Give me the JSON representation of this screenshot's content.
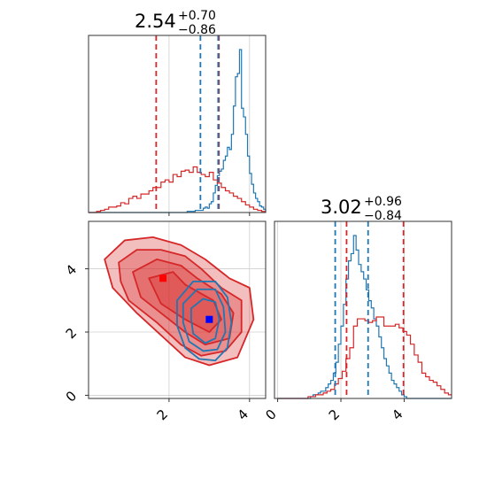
{
  "chart_data": [
    {
      "id": "panel-top-left",
      "type": "histogram",
      "title": {
        "median": "2.54",
        "plus": "+0.70",
        "minus": "−0.86"
      },
      "xlim": [
        0,
        4.4
      ],
      "xticks": [
        2,
        4
      ],
      "grid": true,
      "series": [
        {
          "color": "#1f77b4",
          "bin_start": 0.0,
          "bin_width": 0.05,
          "counts": [
            0,
            0,
            0,
            0,
            0,
            0,
            0,
            0,
            0,
            0,
            0,
            0,
            0,
            0,
            0,
            0,
            0,
            0,
            0,
            0,
            0,
            0,
            0,
            0,
            0,
            0,
            0,
            0,
            0,
            0,
            0,
            0,
            0,
            0,
            0,
            0,
            0,
            0,
            0,
            0,
            0,
            0,
            0,
            0,
            0,
            0,
            0,
            0,
            0,
            1,
            1,
            1,
            1,
            2,
            2,
            2,
            2,
            4,
            5,
            4,
            8,
            10,
            18,
            25,
            34,
            38,
            40,
            48,
            52,
            60,
            58,
            72,
            98,
            125,
            128,
            150,
            96,
            88,
            72,
            52,
            36,
            26,
            18,
            13,
            10,
            6,
            5,
            3,
            2,
            1,
            0
          ]
        },
        {
          "color": "#d62728",
          "bin_start": 0.0,
          "bin_width": 0.1,
          "counts": [
            0,
            0,
            1,
            2,
            3,
            5,
            5,
            6,
            9,
            8,
            13,
            15,
            13,
            17,
            17,
            20,
            23,
            23,
            28,
            30,
            28,
            35,
            33,
            38,
            39,
            37,
            42,
            37,
            35,
            33,
            37,
            30,
            27,
            23,
            20,
            18,
            15,
            13,
            10,
            7,
            5,
            3,
            2,
            1
          ]
        }
      ],
      "quantile_lines": [
        {
          "color": "#d62728",
          "values": [
            1.68,
            3.24
          ]
        },
        {
          "color": "#1f77b4",
          "values": [
            2.78,
            3.22
          ]
        }
      ]
    },
    {
      "id": "panel-bottom-right",
      "type": "histogram",
      "title": {
        "median": "3.02",
        "plus": "+0.96",
        "minus": "−0.84"
      },
      "xlim": [
        -0.1,
        5.5
      ],
      "xticks": [
        0,
        2,
        4
      ],
      "grid": true,
      "series": [
        {
          "color": "#1f77b4",
          "bin_start": 0.0,
          "bin_width": 0.08,
          "counts": [
            0,
            0,
            0,
            0,
            0,
            0,
            0,
            0,
            0,
            0,
            0,
            0,
            0,
            1,
            2,
            2,
            3,
            4,
            4,
            6,
            8,
            10,
            14,
            20,
            30,
            40,
            52,
            66,
            76,
            80,
            90,
            82,
            74,
            70,
            66,
            60,
            54,
            50,
            44,
            40,
            34,
            28,
            22,
            18,
            14,
            10,
            8,
            6,
            4,
            2,
            1,
            0,
            0,
            0,
            0,
            0,
            0,
            0,
            0,
            0,
            0,
            0,
            0,
            0,
            0,
            0,
            0,
            0,
            0
          ]
        },
        {
          "color": "#d62728",
          "bin_start": 0.0,
          "bin_width": 0.12,
          "counts": [
            0,
            0,
            0,
            0,
            0,
            0,
            0,
            0,
            1,
            1,
            2,
            2,
            3,
            4,
            5,
            8,
            11,
            15,
            22,
            28,
            40,
            44,
            44,
            43,
            42,
            43,
            45,
            45,
            40,
            40,
            40,
            41,
            39,
            37,
            35,
            30,
            24,
            20,
            14,
            12,
            10,
            9,
            7,
            5,
            3,
            2
          ]
        }
      ],
      "quantile_lines": [
        {
          "color": "#d62728",
          "values": [
            2.18,
            3.98
          ]
        },
        {
          "color": "#1f77b4",
          "values": [
            1.82,
            2.86
          ]
        }
      ]
    },
    {
      "id": "panel-bottom-left",
      "type": "contour",
      "xlim": [
        0,
        4.4
      ],
      "ylim": [
        -0.1,
        5.5
      ],
      "xticks": [
        2,
        4
      ],
      "yticks": [
        0,
        2,
        4
      ],
      "grid": true,
      "series": [
        {
          "color": "#d62728",
          "filled": true,
          "levels": [
            [
              [
                0.4,
                4.3
              ],
              [
                0.9,
                4.9
              ],
              [
                1.6,
                5.0
              ],
              [
                2.3,
                4.75
              ],
              [
                2.9,
                4.3
              ],
              [
                3.5,
                3.7
              ],
              [
                4.0,
                3.4
              ],
              [
                4.1,
                2.4
              ],
              [
                3.7,
                1.2
              ],
              [
                3.0,
                0.95
              ],
              [
                2.4,
                1.2
              ],
              [
                1.8,
                1.9
              ],
              [
                1.2,
                2.6
              ],
              [
                0.6,
                3.4
              ]
            ],
            [
              [
                0.75,
                4.2
              ],
              [
                1.2,
                4.6
              ],
              [
                1.8,
                4.6
              ],
              [
                2.4,
                4.4
              ],
              [
                2.8,
                4.0
              ],
              [
                3.3,
                3.4
              ],
              [
                3.8,
                3.0
              ],
              [
                3.8,
                2.0
              ],
              [
                3.4,
                1.4
              ],
              [
                2.8,
                1.25
              ],
              [
                2.3,
                1.6
              ],
              [
                1.7,
                2.3
              ],
              [
                1.0,
                3.0
              ],
              [
                0.8,
                3.6
              ]
            ],
            [
              [
                1.1,
                3.9
              ],
              [
                1.7,
                4.3
              ],
              [
                2.3,
                4.1
              ],
              [
                2.7,
                3.7
              ],
              [
                3.3,
                3.2
              ],
              [
                3.6,
                2.6
              ],
              [
                3.5,
                1.8
              ],
              [
                2.9,
                1.6
              ],
              [
                2.4,
                2.0
              ],
              [
                1.8,
                2.6
              ],
              [
                1.3,
                3.1
              ]
            ],
            [
              [
                1.5,
                3.7
              ],
              [
                2.1,
                3.9
              ],
              [
                2.4,
                3.5
              ],
              [
                3.1,
                3.0
              ],
              [
                3.3,
                2.4
              ],
              [
                3.0,
                2.0
              ],
              [
                2.4,
                2.4
              ],
              [
                1.8,
                2.9
              ]
            ]
          ],
          "marker": [
            1.85,
            3.7
          ]
        },
        {
          "color": "#1f77b4",
          "filled": false,
          "levels": [
            [
              [
                2.2,
                3.0
              ],
              [
                2.6,
                3.6
              ],
              [
                3.15,
                3.6
              ],
              [
                3.45,
                3.1
              ],
              [
                3.55,
                2.3
              ],
              [
                3.45,
                1.5
              ],
              [
                3.15,
                1.1
              ],
              [
                2.75,
                1.15
              ],
              [
                2.4,
                1.5
              ],
              [
                2.2,
                2.2
              ]
            ],
            [
              [
                2.35,
                2.9
              ],
              [
                2.7,
                3.35
              ],
              [
                3.15,
                3.35
              ],
              [
                3.35,
                2.8
              ],
              [
                3.4,
                2.0
              ],
              [
                3.2,
                1.45
              ],
              [
                2.85,
                1.4
              ],
              [
                2.5,
                1.7
              ],
              [
                2.35,
                2.3
              ]
            ],
            [
              [
                2.55,
                2.75
              ],
              [
                2.85,
                3.05
              ],
              [
                3.15,
                2.95
              ],
              [
                3.25,
                2.4
              ],
              [
                3.15,
                1.8
              ],
              [
                2.9,
                1.65
              ],
              [
                2.6,
                1.95
              ],
              [
                2.55,
                2.4
              ]
            ]
          ],
          "marker": [
            3.0,
            2.4
          ]
        }
      ]
    }
  ]
}
